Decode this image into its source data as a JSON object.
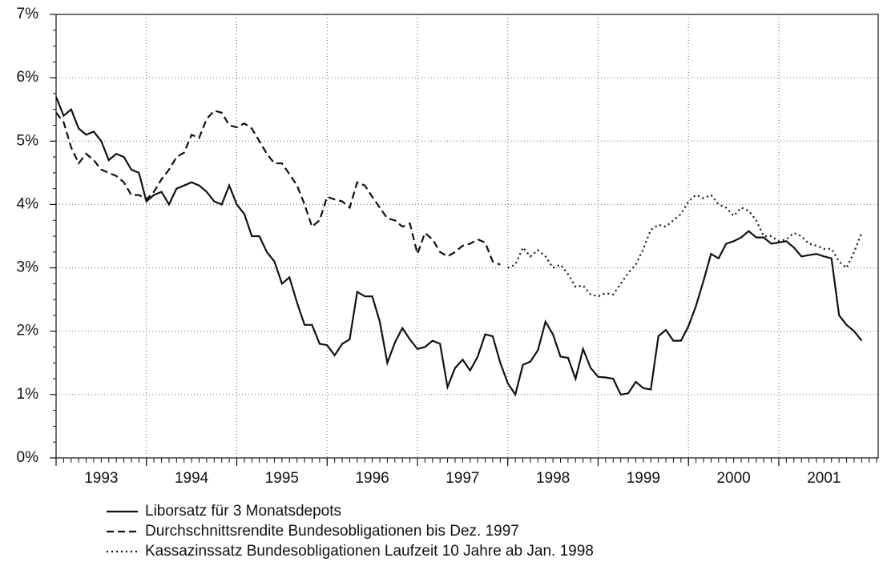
{
  "chart_data": {
    "type": "line",
    "x": [
      1993,
      1993.083,
      1993.167,
      1993.25,
      1993.333,
      1993.417,
      1993.5,
      1993.583,
      1993.667,
      1993.75,
      1993.833,
      1993.917,
      1994,
      1994.083,
      1994.167,
      1994.25,
      1994.333,
      1994.417,
      1994.5,
      1994.583,
      1994.667,
      1994.75,
      1994.833,
      1994.917,
      1995,
      1995.083,
      1995.167,
      1995.25,
      1995.333,
      1995.417,
      1995.5,
      1995.583,
      1995.667,
      1995.75,
      1995.833,
      1995.917,
      1996,
      1996.083,
      1996.167,
      1996.25,
      1996.333,
      1996.417,
      1996.5,
      1996.583,
      1996.667,
      1996.75,
      1996.833,
      1996.917,
      1997,
      1997.083,
      1997.167,
      1997.25,
      1997.333,
      1997.417,
      1997.5,
      1997.583,
      1997.667,
      1997.75,
      1997.833,
      1997.917,
      1998,
      1998.083,
      1998.167,
      1998.25,
      1998.333,
      1998.417,
      1998.5,
      1998.583,
      1998.667,
      1998.75,
      1998.833,
      1998.917,
      1999,
      1999.083,
      1999.167,
      1999.25,
      1999.333,
      1999.417,
      1999.5,
      1999.583,
      1999.667,
      1999.75,
      1999.833,
      1999.917,
      2000,
      2000.083,
      2000.167,
      2000.25,
      2000.333,
      2000.417,
      2000.5,
      2000.583,
      2000.667,
      2000.75,
      2000.833,
      2000.917,
      2001,
      2001.083,
      2001.167,
      2001.25,
      2001.333,
      2001.417,
      2001.5,
      2001.583,
      2001.667,
      2001.75,
      2001.833,
      2001.917
    ],
    "series": [
      {
        "name": "Liborsatz für 3 Monatsdepots",
        "color": "#111111",
        "line_style": "solid",
        "values": [
          5.7,
          5.4,
          5.5,
          5.2,
          5.1,
          5.15,
          5.0,
          4.7,
          4.8,
          4.75,
          4.55,
          4.5,
          4.05,
          4.15,
          4.2,
          4.0,
          4.25,
          4.3,
          4.35,
          4.3,
          4.2,
          4.05,
          4.0,
          4.3,
          4.0,
          3.85,
          3.5,
          3.5,
          3.25,
          3.1,
          2.75,
          2.85,
          2.45,
          2.1,
          2.1,
          1.8,
          1.78,
          1.62,
          1.8,
          1.87,
          2.62,
          2.55,
          2.55,
          2.15,
          1.5,
          1.82,
          2.05,
          1.87,
          1.72,
          1.75,
          1.85,
          1.8,
          1.12,
          1.42,
          1.55,
          1.38,
          1.6,
          1.95,
          1.92,
          1.5,
          1.18,
          1.0,
          1.47,
          1.52,
          1.7,
          2.15,
          1.95,
          1.6,
          1.58,
          1.25,
          1.72,
          1.42,
          1.28,
          1.27,
          1.25,
          1.0,
          1.02,
          1.2,
          1.1,
          1.08,
          1.92,
          2.02,
          1.85,
          1.85,
          2.08,
          2.4,
          2.8,
          3.22,
          3.15,
          3.38,
          3.42,
          3.48,
          3.58,
          3.48,
          3.48,
          3.38,
          3.4,
          3.42,
          3.32,
          3.18,
          3.2,
          3.22,
          3.18,
          3.15,
          2.25,
          2.1,
          2.0,
          1.85
        ]
      },
      {
        "name": "Durchschnittsrendite Bundesobligationen bis Dez. 1997",
        "color": "#111111",
        "line_style": "dashed",
        "values": [
          5.45,
          5.3,
          4.9,
          4.65,
          4.8,
          4.7,
          4.55,
          4.5,
          4.45,
          4.35,
          4.15,
          4.15,
          4.08,
          4.2,
          4.4,
          4.55,
          4.75,
          4.82,
          5.1,
          5.05,
          5.35,
          5.48,
          5.45,
          5.25,
          5.22,
          5.28,
          5.2,
          5.0,
          4.8,
          4.65,
          4.65,
          4.48,
          4.3,
          4.0,
          3.65,
          3.75,
          4.12,
          4.08,
          4.05,
          3.95,
          4.35,
          4.3,
          4.12,
          3.95,
          3.78,
          3.75,
          3.65,
          3.7,
          3.22,
          3.55,
          3.45,
          3.25,
          3.18,
          3.25,
          3.35,
          3.38,
          3.45,
          3.4,
          3.1,
          3.05,
          null,
          null,
          null,
          null,
          null,
          null,
          null,
          null,
          null,
          null,
          null,
          null,
          null,
          null,
          null,
          null,
          null,
          null,
          null,
          null,
          null,
          null,
          null,
          null,
          null,
          null,
          null,
          null,
          null,
          null,
          null,
          null,
          null,
          null,
          null,
          null,
          null,
          null,
          null,
          null,
          null,
          null,
          null,
          null,
          null,
          null,
          null,
          null
        ]
      },
      {
        "name": "Kassazinssatz Bundesobligationen Laufzeit 10 Jahre ab Jan. 1998",
        "color": "#111111",
        "line_style": "dotted",
        "values": [
          null,
          null,
          null,
          null,
          null,
          null,
          null,
          null,
          null,
          null,
          null,
          null,
          null,
          null,
          null,
          null,
          null,
          null,
          null,
          null,
          null,
          null,
          null,
          null,
          null,
          null,
          null,
          null,
          null,
          null,
          null,
          null,
          null,
          null,
          null,
          null,
          null,
          null,
          null,
          null,
          null,
          null,
          null,
          null,
          null,
          null,
          null,
          null,
          null,
          null,
          null,
          null,
          null,
          null,
          null,
          null,
          null,
          null,
          null,
          null,
          3.0,
          3.05,
          3.32,
          3.18,
          3.28,
          3.18,
          3.0,
          3.05,
          2.9,
          2.7,
          2.72,
          2.58,
          2.55,
          2.6,
          2.58,
          2.75,
          2.92,
          3.05,
          3.3,
          3.6,
          3.68,
          3.65,
          3.75,
          3.85,
          4.05,
          4.15,
          4.1,
          4.15,
          4.0,
          3.95,
          3.82,
          3.95,
          3.9,
          3.75,
          3.5,
          3.5,
          3.42,
          3.45,
          3.55,
          3.5,
          3.38,
          3.35,
          3.3,
          3.3,
          3.1,
          3.0,
          3.25,
          3.55
        ]
      }
    ],
    "xlim": [
      1993,
      2002.1
    ],
    "xticks": [
      1993,
      1994,
      1995,
      1996,
      1997,
      1998,
      1999,
      2000,
      2001
    ],
    "ylim": [
      0,
      7
    ],
    "yticks": [
      {
        "value": 0,
        "label": "0%"
      },
      {
        "value": 1,
        "label": "1%"
      },
      {
        "value": 2,
        "label": "2%"
      },
      {
        "value": 3,
        "label": "3%"
      },
      {
        "value": 4,
        "label": "4%"
      },
      {
        "value": 5,
        "label": "5%"
      },
      {
        "value": 6,
        "label": "6%"
      },
      {
        "value": 7,
        "label": "7%"
      }
    ],
    "grid": true,
    "legend": "bottom"
  }
}
